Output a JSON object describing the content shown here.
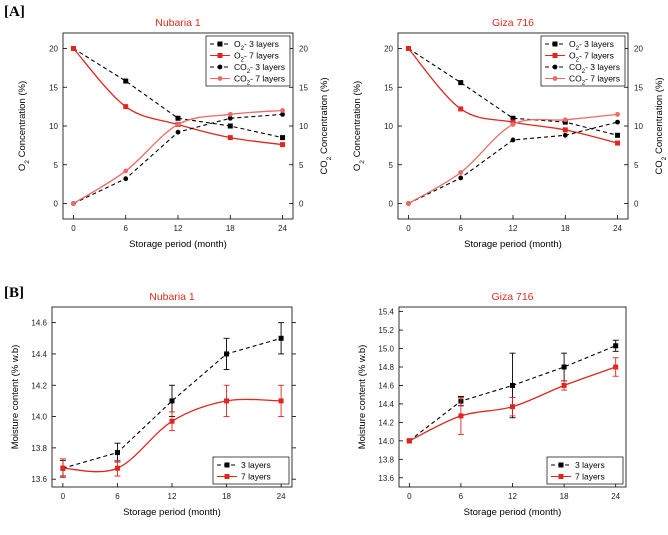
{
  "figure": {
    "panel_labels": [
      "[A]",
      "[B]"
    ]
  },
  "colors": {
    "black": "#000000",
    "red": "#e0261f",
    "light_red": "#ec6a64",
    "title_red": "#d7301f"
  },
  "chart_data": [
    {
      "type": "line",
      "panel": "A",
      "title": "Nubaria 1",
      "xlabel": "Storage period (month)",
      "ylabel": "O2 Concentration (%)",
      "y2label": "CO2 Concentration (%)",
      "x": [
        0,
        6,
        12,
        18,
        24
      ],
      "xticks": [
        "0",
        "6",
        "12",
        "18",
        "24"
      ],
      "ylim": [
        -2,
        22
      ],
      "yticks": [
        "0",
        "5",
        "10",
        "15",
        "20"
      ],
      "y2ticks": [
        "0",
        "5",
        "10",
        "15",
        "20"
      ],
      "legend_position": "top-right",
      "series": [
        {
          "name": "O2- 3 layers",
          "values": [
            20,
            15.8,
            11,
            10,
            8.5
          ],
          "color": "#000000",
          "dashed": true,
          "marker": "square"
        },
        {
          "name": "O2- 7 layers",
          "values": [
            20,
            12.5,
            10.2,
            8.5,
            7.6
          ],
          "color": "#e0261f",
          "dashed": false,
          "marker": "square"
        },
        {
          "name": "CO2- 3 layers",
          "values": [
            0,
            3.2,
            9.2,
            11,
            11.5
          ],
          "color": "#000000",
          "dashed": true,
          "marker": "circle"
        },
        {
          "name": "CO2- 7 layers",
          "values": [
            0,
            4.2,
            10.2,
            11.5,
            12
          ],
          "color": "#ec6a64",
          "dashed": false,
          "marker": "circle"
        }
      ]
    },
    {
      "type": "line",
      "panel": "A",
      "title": "Giza 716",
      "xlabel": "Storage period (month)",
      "ylabel": "O2 Concentration (%)",
      "y2label": "CO2 Concentration (%)",
      "x": [
        0,
        6,
        12,
        18,
        24
      ],
      "xticks": [
        "0",
        "6",
        "12",
        "18",
        "24"
      ],
      "ylim": [
        -2,
        22
      ],
      "yticks": [
        "0",
        "5",
        "10",
        "15",
        "20"
      ],
      "y2ticks": [
        "0",
        "5",
        "10",
        "15",
        "20"
      ],
      "legend_position": "top-right",
      "series": [
        {
          "name": "O2- 3 layers",
          "values": [
            20,
            15.6,
            11,
            10.5,
            8.8
          ],
          "color": "#000000",
          "dashed": true,
          "marker": "square"
        },
        {
          "name": "O2- 7 layers",
          "values": [
            20,
            12.2,
            10.5,
            9.5,
            7.8
          ],
          "color": "#e0261f",
          "dashed": false,
          "marker": "square"
        },
        {
          "name": "CO2- 3 layers",
          "values": [
            0,
            3.3,
            8.2,
            8.8,
            10.5
          ],
          "color": "#000000",
          "dashed": true,
          "marker": "circle"
        },
        {
          "name": "CO2- 7 layers",
          "values": [
            0,
            4,
            10.2,
            10.8,
            11.5
          ],
          "color": "#ec6a64",
          "dashed": false,
          "marker": "circle"
        }
      ]
    },
    {
      "type": "line",
      "panel": "B",
      "title": "Nubaria 1",
      "xlabel": "Storage period (month)",
      "ylabel": "Moisture content (% w.b)",
      "x": [
        0,
        6,
        12,
        18,
        24
      ],
      "xticks": [
        "0",
        "6",
        "12",
        "18",
        "24"
      ],
      "ylim": [
        13.55,
        14.7
      ],
      "yticks": [
        "13.6",
        "13.8",
        "14.0",
        "14.2",
        "14.4",
        "14.6"
      ],
      "legend_position": "bottom-right",
      "series": [
        {
          "name": "3 layers",
          "values": [
            13.67,
            13.77,
            14.1,
            14.4,
            14.5
          ],
          "errors": [
            0.05,
            0.06,
            0.1,
            0.1,
            0.1
          ],
          "color": "#000000",
          "dashed": true,
          "marker": "square"
        },
        {
          "name": "7 layers",
          "values": [
            13.67,
            13.67,
            13.97,
            14.1,
            14.1
          ],
          "errors": [
            0.06,
            0.05,
            0.06,
            0.1,
            0.1
          ],
          "color": "#e0261f",
          "dashed": false,
          "marker": "square"
        }
      ]
    },
    {
      "type": "line",
      "panel": "B",
      "title": "Giza 716",
      "xlabel": "Storage period (month)",
      "ylabel": "Moisture content (% w.b)",
      "x": [
        0,
        6,
        12,
        18,
        24
      ],
      "xticks": [
        "0",
        "6",
        "12",
        "18",
        "24"
      ],
      "ylim": [
        13.5,
        15.45
      ],
      "yticks": [
        "13.6",
        "13.8",
        "14.0",
        "14.2",
        "14.4",
        "14.6",
        "14.8",
        "15.0",
        "15.2",
        "15.4"
      ],
      "legend_position": "bottom-right",
      "series": [
        {
          "name": "3 layers",
          "values": [
            14.0,
            14.43,
            14.6,
            14.8,
            15.03
          ],
          "errors": [
            0.0,
            0.05,
            0.35,
            0.15,
            0.06
          ],
          "color": "#000000",
          "dashed": true,
          "marker": "square"
        },
        {
          "name": "7 layers",
          "values": [
            14.0,
            14.27,
            14.37,
            14.6,
            14.8
          ],
          "errors": [
            0.0,
            0.2,
            0.1,
            0.05,
            0.1
          ],
          "color": "#e0261f",
          "dashed": false,
          "marker": "square"
        }
      ]
    }
  ]
}
